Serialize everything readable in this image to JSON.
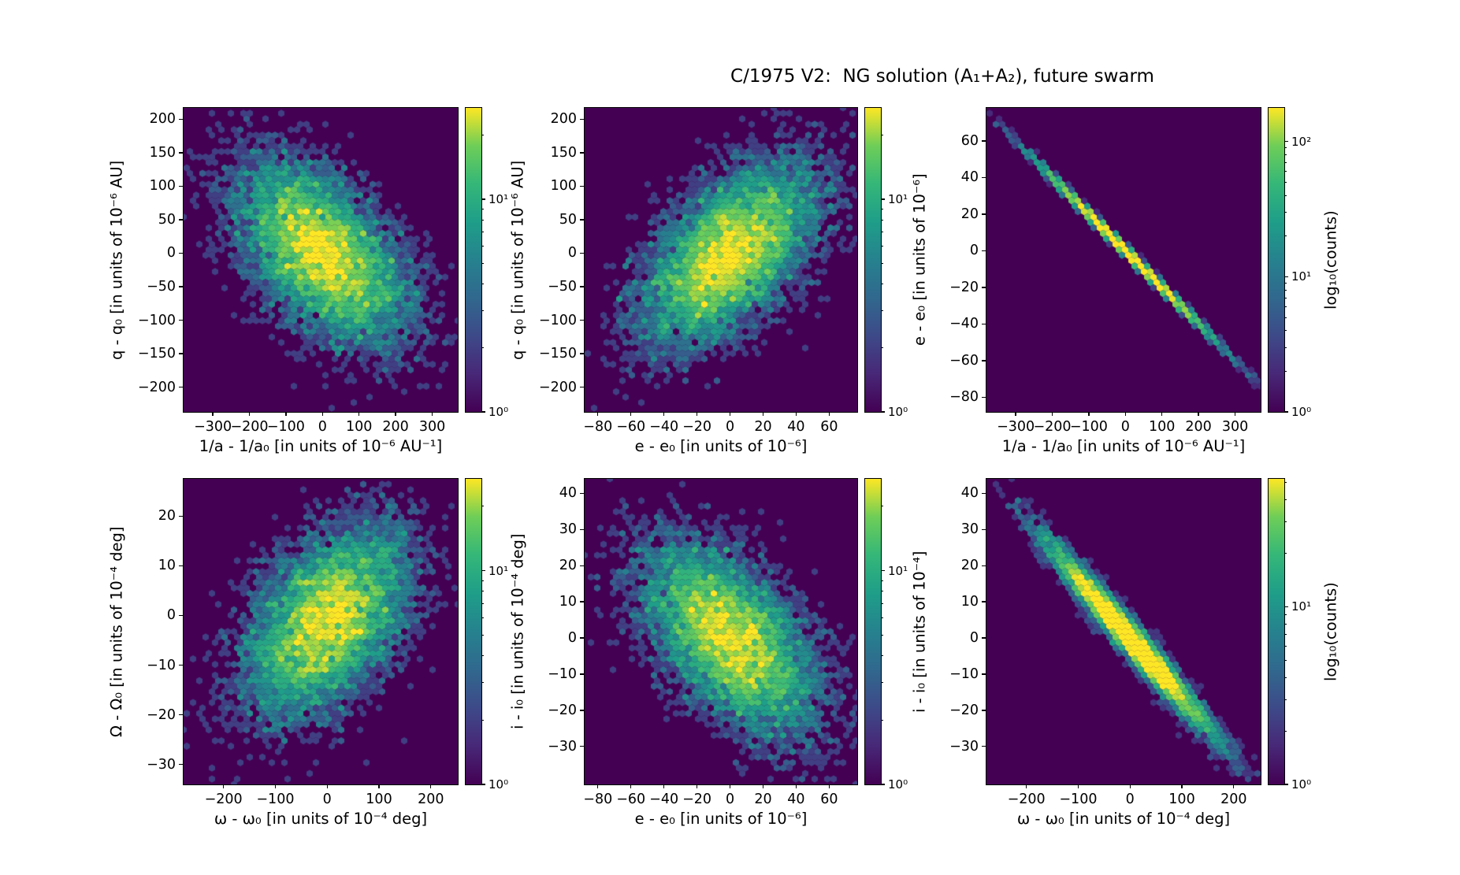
{
  "colors": {
    "background": "#ffffff",
    "axis": "#000000",
    "viridis_min": "#440154",
    "viridis_max": "#fde725"
  },
  "chart_data": {
    "type": "hexbin",
    "title": "C/1975 V2:  NG solution (A₁+A₂), future swarm",
    "colormap": "viridis",
    "color_scale": "log",
    "legend_position": "colorbar-right-of-each-panel",
    "grid": false,
    "panels": [
      {
        "name": "q-vs-inverse-a",
        "row": 0,
        "col": 0,
        "xlabel": "1/a - 1/a₀ [in units of 10⁻⁶ AU⁻¹]",
        "ylabel": "q - q₀ [in units of 10⁻⁶ AU]",
        "xlim": [
          -380,
          370
        ],
        "ylim": [
          -237,
          217
        ],
        "xticks": [
          -300,
          -200,
          -100,
          0,
          100,
          200,
          300
        ],
        "yticks": [
          200,
          150,
          100,
          50,
          0,
          -50,
          -100,
          -150,
          -200
        ],
        "distribution": {
          "kind": "gaussian",
          "n_points": 8000,
          "center": [
            0,
            0
          ],
          "sigma_x": 113,
          "sigma_y": 66,
          "rho": -0.52
        },
        "colorbar": {
          "ticks": [
            {
              "value": 1,
              "label": "10⁰"
            },
            {
              "value": 10,
              "label": "10¹"
            }
          ],
          "log10_max": 1.43,
          "label": ""
        }
      },
      {
        "name": "q-vs-e",
        "row": 0,
        "col": 1,
        "xlabel": "e - e₀ [in units of 10⁻⁶]",
        "ylabel": "q - q₀ [in units of 10⁻⁶ AU]",
        "xlim": [
          -88,
          77
        ],
        "ylim": [
          -237,
          217
        ],
        "xticks": [
          -80,
          -60,
          -40,
          -20,
          0,
          20,
          40,
          60
        ],
        "yticks": [
          200,
          150,
          100,
          50,
          0,
          -50,
          -100,
          -150,
          -200
        ],
        "distribution": {
          "kind": "gaussian",
          "n_points": 8000,
          "center": [
            0,
            0
          ],
          "sigma_x": 25.5,
          "sigma_y": 66,
          "rho": 0.55
        },
        "colorbar": {
          "ticks": [
            {
              "value": 1,
              "label": "10⁰"
            },
            {
              "value": 10,
              "label": "10¹"
            }
          ],
          "log10_max": 1.43,
          "label": ""
        }
      },
      {
        "name": "e-vs-inverse-a",
        "row": 0,
        "col": 2,
        "xlabel": "1/a - 1/a₀ [in units of 10⁻⁶ AU⁻¹]",
        "ylabel": "e - e₀ [in units of 10⁻⁶]",
        "xlim": [
          -380,
          370
        ],
        "ylim": [
          -88,
          78
        ],
        "xticks": [
          -300,
          -200,
          -100,
          0,
          100,
          200,
          300
        ],
        "yticks": [
          60,
          40,
          20,
          0,
          -20,
          -40,
          -60,
          -80
        ],
        "distribution": {
          "kind": "line",
          "n_points": 8000,
          "center": [
            0,
            0
          ],
          "sigma_x": 113,
          "slope": -0.2,
          "sigma_perp": 1.2
        },
        "colorbar": {
          "ticks": [
            {
              "value": 1,
              "label": "10⁰"
            },
            {
              "value": 10,
              "label": "10¹"
            },
            {
              "value": 100,
              "label": "10²"
            }
          ],
          "log10_max": 2.25,
          "label": "log₁₀(counts)"
        }
      },
      {
        "name": "Omega-vs-omega",
        "row": 1,
        "col": 0,
        "xlabel": "ω - ω₀ [in units of 10⁻⁴ deg]",
        "ylabel": "Ω - Ω₀ [in units of 10⁻⁴ deg]",
        "xlim": [
          -277,
          252
        ],
        "ylim": [
          -34,
          27.5
        ],
        "xticks": [
          -200,
          -100,
          0,
          100,
          200
        ],
        "yticks": [
          20,
          10,
          0,
          -10,
          -20,
          -30
        ],
        "distribution": {
          "kind": "gaussian",
          "n_points": 8000,
          "center": [
            0,
            -1
          ],
          "sigma_x": 76,
          "sigma_y": 9.2,
          "rho": 0.45
        },
        "colorbar": {
          "ticks": [
            {
              "value": 1,
              "label": "10⁰"
            },
            {
              "value": 10,
              "label": "10¹"
            }
          ],
          "log10_max": 1.43,
          "label": ""
        }
      },
      {
        "name": "i-vs-e",
        "row": 1,
        "col": 1,
        "xlabel": "e - e₀ [in units of 10⁻⁶]",
        "ylabel": "i - i₀ [in units of 10⁻⁴ deg]",
        "xlim": [
          -88,
          77
        ],
        "ylim": [
          -40.5,
          44
        ],
        "xticks": [
          -80,
          -60,
          -40,
          -20,
          0,
          20,
          40,
          60
        ],
        "yticks": [
          40,
          30,
          20,
          10,
          0,
          -10,
          -20,
          -30
        ],
        "distribution": {
          "kind": "gaussian",
          "n_points": 8000,
          "center": [
            0,
            0
          ],
          "sigma_x": 25.5,
          "sigma_y": 12.8,
          "rho": -0.55
        },
        "colorbar": {
          "ticks": [
            {
              "value": 1,
              "label": "10⁰"
            },
            {
              "value": 10,
              "label": "10¹"
            }
          ],
          "log10_max": 1.43,
          "label": ""
        }
      },
      {
        "name": "i-vs-omega",
        "row": 1,
        "col": 2,
        "xlabel": "ω - ω₀ [in units of 10⁻⁴ deg]",
        "ylabel": "i - i₀ [in units of 10⁻⁴]",
        "xlim": [
          -277,
          252
        ],
        "ylim": [
          -40.5,
          44
        ],
        "xticks": [
          -200,
          -100,
          0,
          100,
          200
        ],
        "yticks": [
          40,
          30,
          20,
          10,
          0,
          -10,
          -20,
          -30
        ],
        "distribution": {
          "kind": "line",
          "n_points": 8000,
          "center": [
            0,
            0
          ],
          "sigma_x": 76,
          "slope": -0.162,
          "sigma_perp": 2.6
        },
        "colorbar": {
          "ticks": [
            {
              "value": 1,
              "label": "10⁰"
            },
            {
              "value": 10,
              "label": "10¹"
            }
          ],
          "log10_max": 1.72,
          "label": "log₁₀(counts)"
        }
      }
    ]
  }
}
